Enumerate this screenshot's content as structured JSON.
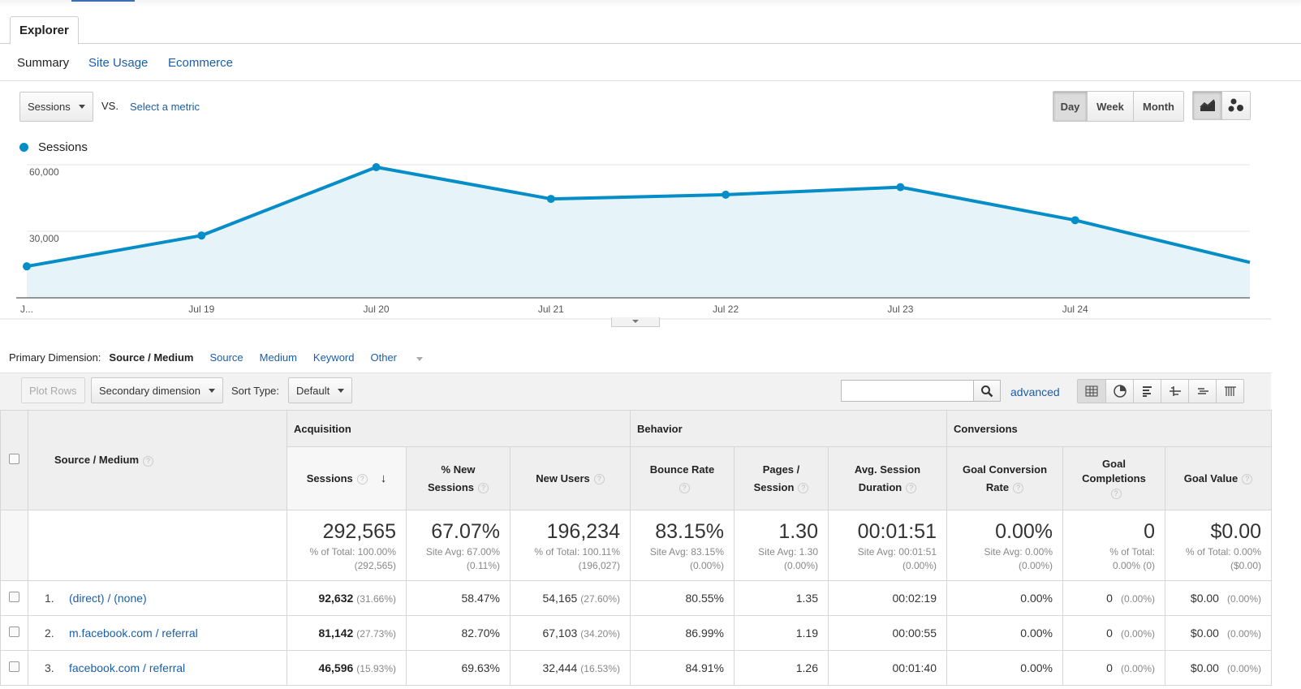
{
  "tab": {
    "label": "Explorer"
  },
  "subnav": {
    "items": [
      "Summary",
      "Site Usage",
      "Ecommerce"
    ]
  },
  "metric": {
    "selected": "Sessions",
    "vs": "VS.",
    "select_metric": "Select a metric"
  },
  "granularity": {
    "options": [
      "Day",
      "Week",
      "Month"
    ],
    "selected": "Day"
  },
  "legend": {
    "label": "Sessions",
    "color": "#058dc7"
  },
  "chart_data": {
    "type": "area",
    "series": [
      {
        "name": "Sessions",
        "color": "#058dc7",
        "values": [
          14200,
          28100,
          58900,
          44600,
          46500,
          49900,
          35000,
          16000
        ]
      }
    ],
    "x": [
      "J...",
      "Jul 19",
      "Jul 20",
      "Jul 21",
      "Jul 22",
      "Jul 23",
      "Jul 24",
      ""
    ],
    "yticks": [
      "60,000",
      "30,000"
    ],
    "ytick_values": [
      60000,
      30000
    ],
    "ylim": [
      0,
      60000
    ],
    "grid": true
  },
  "primary_dimension": {
    "label": "Primary Dimension:",
    "selected": "Source / Medium",
    "options": [
      "Source",
      "Medium",
      "Keyword",
      "Other"
    ]
  },
  "toolbar": {
    "plot_rows": "Plot Rows",
    "secondary_dimension": "Secondary dimension",
    "sort_type_label": "Sort Type:",
    "sort_type": "Default",
    "advanced": "advanced",
    "search_value": ""
  },
  "table": {
    "groups": {
      "acquisition": "Acquisition",
      "behavior": "Behavior",
      "conversions": "Conversions"
    },
    "dimension_header": "Source / Medium",
    "columns": {
      "sessions": "Sessions",
      "new_sessions": [
        "% New",
        "Sessions"
      ],
      "new_users": "New Users",
      "bounce_rate": "Bounce Rate",
      "pages_session": [
        "Pages /",
        "Session"
      ],
      "avg_duration": [
        "Avg. Session",
        "Duration"
      ],
      "goal_conv": [
        "Goal Conversion",
        "Rate"
      ],
      "goal_completions": [
        "Goal",
        "Completions"
      ],
      "goal_value": "Goal Value"
    },
    "totals": {
      "sessions": {
        "big": "292,565",
        "l1": "% of Total: 100.00%",
        "l2": "(292,565)"
      },
      "new_sessions": {
        "big": "67.07%",
        "l1": "Site Avg: 67.00%",
        "l2": "(0.11%)"
      },
      "new_users": {
        "big": "196,234",
        "l1": "% of Total: 100.11%",
        "l2": "(196,027)"
      },
      "bounce_rate": {
        "big": "83.15%",
        "l1": "Site Avg: 83.15%",
        "l2": "(0.00%)"
      },
      "pages_session": {
        "big": "1.30",
        "l1": "Site Avg: 1.30",
        "l2": "(0.00%)"
      },
      "avg_duration": {
        "big": "00:01:51",
        "l1": "Site Avg: 00:01:51",
        "l2": "(0.00%)"
      },
      "goal_conv": {
        "big": "0.00%",
        "l1": "Site Avg: 0.00%",
        "l2": "(0.00%)"
      },
      "goal_completions": {
        "big": "0",
        "l1": "% of Total:",
        "l2": "0.00% (0)"
      },
      "goal_value": {
        "big": "$0.00",
        "l1": "% of Total: 0.00%",
        "l2": "($0.00)"
      }
    },
    "rows": [
      {
        "num": "1.",
        "name": "(direct) / (none)",
        "sessions": "92,632",
        "sessions_pct": "(31.66%)",
        "new_sessions": "58.47%",
        "new_users": "54,165",
        "new_users_pct": "(27.60%)",
        "bounce": "80.55%",
        "pages": "1.35",
        "duration": "00:02:19",
        "goal_conv": "0.00%",
        "goal_comp": "0",
        "goal_comp_pct": "(0.00%)",
        "goal_value": "$0.00",
        "goal_value_pct": "(0.00%)"
      },
      {
        "num": "2.",
        "name": "m.facebook.com / referral",
        "sessions": "81,142",
        "sessions_pct": "(27.73%)",
        "new_sessions": "82.70%",
        "new_users": "67,103",
        "new_users_pct": "(34.20%)",
        "bounce": "86.99%",
        "pages": "1.19",
        "duration": "00:00:55",
        "goal_conv": "0.00%",
        "goal_comp": "0",
        "goal_comp_pct": "(0.00%)",
        "goal_value": "$0.00",
        "goal_value_pct": "(0.00%)"
      },
      {
        "num": "3.",
        "name": "facebook.com / referral",
        "sessions": "46,596",
        "sessions_pct": "(15.93%)",
        "new_sessions": "69.63%",
        "new_users": "32,444",
        "new_users_pct": "(16.53%)",
        "bounce": "84.91%",
        "pages": "1.26",
        "duration": "00:01:40",
        "goal_conv": "0.00%",
        "goal_comp": "0",
        "goal_comp_pct": "(0.00%)",
        "goal_value": "$0.00",
        "goal_value_pct": "(0.00%)"
      }
    ]
  }
}
